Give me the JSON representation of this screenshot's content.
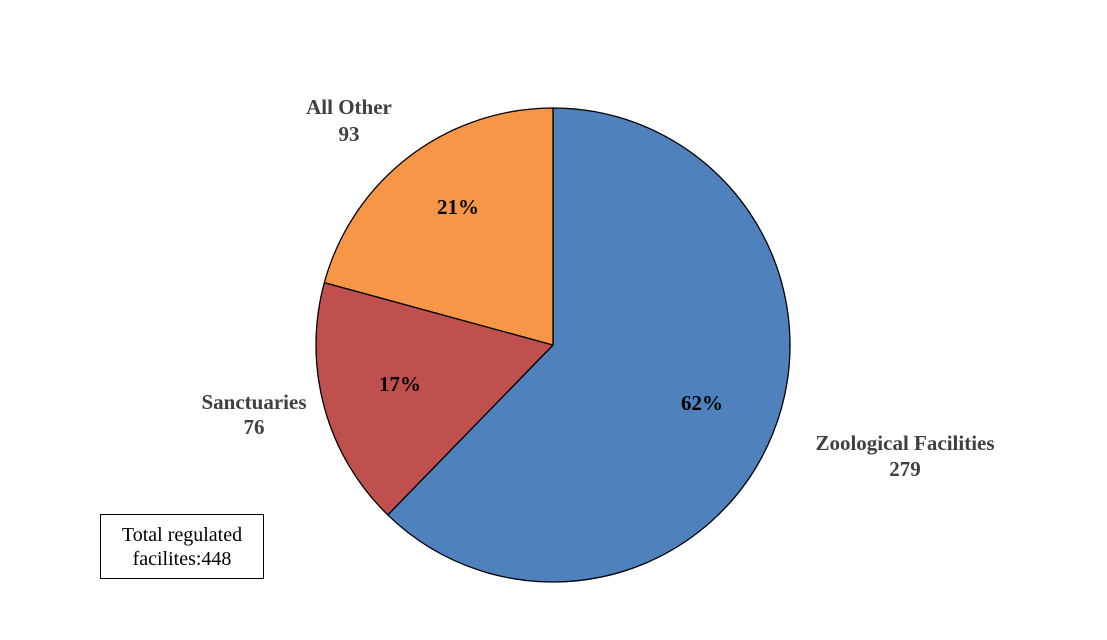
{
  "chart_data": {
    "type": "pie",
    "title": "",
    "slices": [
      {
        "label": "Zoological Facilities",
        "value": 279,
        "percent": "62%",
        "color": "#4F81BD"
      },
      {
        "label": "Sanctuaries",
        "value": 76,
        "percent": "17%",
        "color": "#C0504D"
      },
      {
        "label": "All Other",
        "value": 93,
        "percent": "21%",
        "color": "#F79646"
      }
    ],
    "start_angle_deg": 0,
    "direction": "clockwise",
    "legend": "none"
  },
  "note": {
    "line1": "Total regulated",
    "line2": "facilites:448"
  }
}
